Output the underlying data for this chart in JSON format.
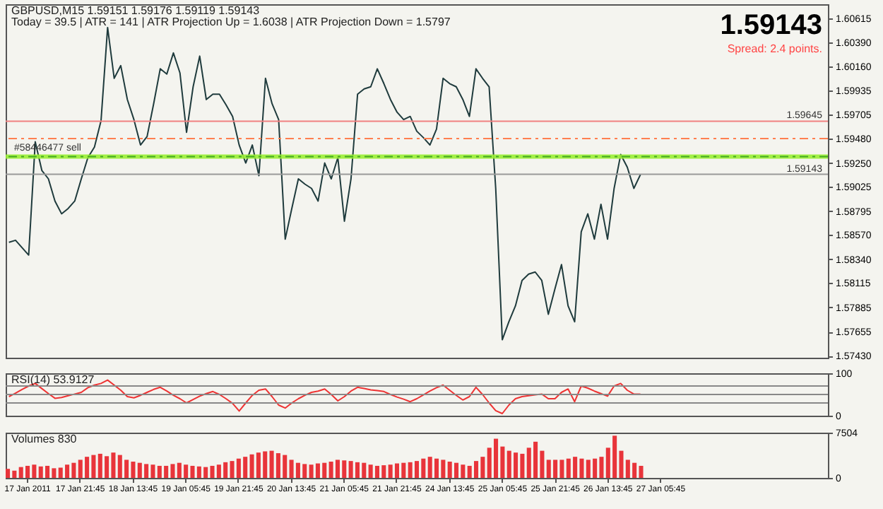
{
  "chart_data": [
    {
      "type": "line",
      "title": "GBPUSD,M15  1.59151 1.59176 1.59119 1.59143",
      "subtitle": "Today = 39.5   |   ATR = 141   |   ATR Projection Up = 1.6038   |   ATR Projection Down = 1.5797",
      "categories": [
        null,
        null,
        null,
        null,
        null,
        null,
        null,
        null,
        null,
        null,
        null,
        null,
        null,
        null,
        null,
        null,
        null,
        null,
        null,
        null,
        null,
        null,
        null,
        null,
        null,
        null,
        null,
        null,
        null,
        null,
        null,
        null,
        null,
        null,
        null,
        null,
        null,
        null,
        null,
        null,
        null,
        null,
        null,
        null,
        null,
        null,
        null,
        null,
        null,
        null,
        null,
        null,
        null,
        null,
        null,
        null,
        null,
        null,
        null,
        null,
        null,
        null,
        null,
        null,
        null,
        null,
        null,
        null,
        null,
        null,
        null,
        null,
        null,
        null,
        null,
        null,
        null,
        null,
        null,
        null,
        null,
        null,
        null,
        null,
        null,
        null,
        null,
        null,
        null,
        null,
        null,
        null,
        null,
        null,
        null,
        null,
        null,
        null,
        null,
        null,
        null,
        null,
        null,
        null,
        null,
        null,
        null,
        null,
        null,
        null,
        null,
        null,
        null,
        null,
        null,
        null,
        null,
        null,
        null,
        null,
        null,
        null,
        null,
        null,
        null
      ],
      "series": [
        {
          "color": "#1f3b3d",
          "values": [
            1.585,
            1.5852,
            1.5845,
            1.5838,
            1.5945,
            1.5918,
            1.591,
            1.5889,
            1.5877,
            1.5882,
            1.5889,
            1.591,
            1.593,
            1.594,
            1.5965,
            1.6053,
            1.6005,
            1.6017,
            1.5985,
            1.5966,
            1.5942,
            1.595,
            1.5981,
            1.6014,
            1.6009,
            1.6029,
            1.601,
            1.5954,
            1.5997,
            1.6026,
            1.5985,
            1.599,
            1.599,
            1.598,
            1.5969,
            1.5942,
            1.5925,
            1.5942,
            1.5913,
            1.6005,
            1.5981,
            1.5966,
            1.5853,
            1.5882,
            1.591,
            1.5905,
            1.5901,
            1.5889,
            1.5925,
            1.591,
            1.593,
            1.587,
            1.591,
            1.599,
            1.5995,
            1.5997,
            1.6014,
            1.6,
            1.5985,
            1.5973,
            1.5966,
            1.5969,
            1.5955,
            1.5949,
            1.5942,
            1.5957,
            1.6005,
            1.6,
            1.5997,
            1.5985,
            1.5969,
            1.6014,
            1.6005,
            1.5997,
            1.5901,
            1.5758,
            1.5775,
            1.579,
            1.5814,
            1.582,
            1.5822,
            1.5814,
            1.5782,
            1.5806,
            1.5829,
            1.579,
            1.5775,
            1.586,
            1.5877,
            1.5853,
            1.5886,
            1.5853,
            1.5901,
            1.5933,
            1.5921,
            1.5901,
            1.5914,
            null,
            null,
            null,
            null,
            null,
            null,
            null,
            null,
            null,
            null,
            null,
            null,
            null,
            null,
            null,
            null,
            null,
            null,
            null,
            null,
            null,
            null,
            null,
            null,
            null,
            null,
            null,
            null
          ]
        }
      ],
      "ylim": [
        1.5741,
        1.6075
      ],
      "yticks": [
        {
          "value": 1.60615,
          "label": "1.60615"
        },
        {
          "value": 1.6039,
          "label": "1.60390"
        },
        {
          "value": 1.6016,
          "label": "1.60160"
        },
        {
          "value": 1.59935,
          "label": "1.59935"
        },
        {
          "value": 1.59705,
          "label": "1.59705"
        },
        {
          "value": 1.5948,
          "label": "1.59480"
        },
        {
          "value": 1.5925,
          "label": "1.59250"
        },
        {
          "value": 1.59025,
          "label": "1.59025"
        },
        {
          "value": 1.58795,
          "label": "1.58795"
        },
        {
          "value": 1.5857,
          "label": "1.58570"
        },
        {
          "value": 1.5834,
          "label": "1.58340"
        },
        {
          "value": 1.58115,
          "label": "1.58115"
        },
        {
          "value": 1.57885,
          "label": "1.57885"
        },
        {
          "value": 1.57655,
          "label": "1.57655"
        },
        {
          "value": 1.5743,
          "label": "1.57430"
        }
      ],
      "tick_labels": "y",
      "ref_lines": [
        {
          "axis": "y",
          "value": 1.59645,
          "label": "1.59645",
          "color": "#f08080"
        },
        {
          "axis": "y",
          "value": 1.5948,
          "color": "#ff7f50",
          "line_style": "dashed"
        },
        {
          "axis": "y",
          "value": 1.5931,
          "color": "#44aa22",
          "line_style": "dashed"
        },
        {
          "axis": "y",
          "value": 1.59143,
          "label": "1.59143",
          "color": "#999999"
        }
      ],
      "bands": [
        {
          "axis": "y",
          "from": 1.5929,
          "to": 1.5933,
          "label": "#58446477 sell",
          "color": "#99ee33"
        }
      ],
      "annotations": [
        "1.59143",
        "Spread: 2.4 points."
      ]
    },
    {
      "type": "line",
      "title": "RSI(14) 53.9127",
      "categories": [
        null,
        null,
        null,
        null,
        null,
        null,
        null,
        null,
        null,
        null,
        null,
        null,
        null,
        null,
        null,
        null,
        null,
        null,
        null,
        null,
        null,
        null,
        null,
        null,
        null,
        null,
        null,
        null,
        null,
        null,
        null,
        null,
        null,
        null,
        null,
        null,
        null,
        null,
        null,
        null,
        null,
        null,
        null,
        null,
        null,
        null,
        null,
        null,
        null,
        null,
        null,
        null,
        null,
        null,
        null,
        null,
        null,
        null,
        null,
        null,
        null,
        null,
        null,
        null,
        null,
        null,
        null,
        null,
        null,
        null,
        null,
        null,
        null,
        null,
        null,
        null,
        null,
        null,
        null,
        null,
        null,
        null,
        null,
        null,
        null,
        null,
        null,
        null,
        null,
        null,
        null,
        null,
        null,
        null,
        null,
        null,
        null,
        null,
        null,
        null,
        null,
        null,
        null,
        null,
        null,
        null,
        null,
        null,
        null,
        null,
        null,
        null,
        null,
        null,
        null,
        null,
        null,
        null,
        null,
        null,
        null,
        null,
        null,
        null,
        null
      ],
      "series": [
        {
          "color": "#ee3333",
          "values": [
            45,
            53,
            62,
            70,
            76,
            64,
            52,
            41,
            43,
            47,
            51,
            55,
            66,
            72,
            76,
            84,
            72,
            60,
            45,
            42,
            48,
            55,
            62,
            67,
            58,
            48,
            40,
            30,
            38,
            46,
            52,
            57,
            50,
            40,
            29,
            11,
            30,
            48,
            60,
            63,
            45,
            25,
            18,
            30,
            40,
            48,
            55,
            58,
            63,
            50,
            35,
            45,
            58,
            67,
            64,
            61,
            59,
            57,
            50,
            44,
            39,
            33,
            40,
            49,
            58,
            66,
            72,
            60,
            48,
            37,
            45,
            67,
            50,
            30,
            12,
            5,
            25,
            40,
            45,
            47,
            49,
            51,
            40,
            40,
            55,
            63,
            33,
            70,
            65,
            58,
            52,
            46,
            70,
            76,
            60,
            51,
            51,
            null,
            null,
            null,
            null,
            null,
            null,
            null,
            null,
            null,
            null,
            null,
            null,
            null,
            null,
            null,
            null,
            null,
            null,
            null,
            null,
            null,
            null,
            null,
            null,
            null,
            null,
            null,
            null
          ]
        }
      ],
      "ylim": [
        0,
        100
      ],
      "yticks": [
        0,
        100
      ],
      "tick_labels": "y",
      "ref_lines": [
        {
          "axis": "y",
          "value": 70,
          "color": "#888888"
        },
        {
          "axis": "y",
          "value": 50,
          "color": "#888888"
        },
        {
          "axis": "y",
          "value": 30,
          "color": "#888888"
        }
      ]
    },
    {
      "type": "bar",
      "title": "Volumes 830",
      "categories": [
        null,
        null,
        null,
        "17 Jan 2011",
        null,
        null,
        null,
        null,
        null,
        null,
        null,
        "17 Jan 21:45",
        null,
        null,
        null,
        null,
        null,
        null,
        null,
        "18 Jan 13:45",
        null,
        null,
        null,
        null,
        null,
        null,
        null,
        "19 Jan 05:45",
        null,
        null,
        null,
        null,
        null,
        null,
        null,
        "19 Jan 21:45",
        null,
        null,
        null,
        null,
        null,
        null,
        null,
        "20 Jan 13:45",
        null,
        null,
        null,
        null,
        null,
        null,
        null,
        "21 Jan 05:45",
        null,
        null,
        null,
        null,
        null,
        null,
        null,
        "21 Jan 21:45",
        null,
        null,
        null,
        null,
        null,
        null,
        null,
        "24 Jan 13:45",
        null,
        null,
        null,
        null,
        null,
        null,
        null,
        "25 Jan 05:45",
        null,
        null,
        null,
        null,
        null,
        null,
        null,
        "25 Jan 21:45",
        null,
        null,
        null,
        null,
        null,
        null,
        null,
        "26 Jan 13:45",
        null,
        null,
        null,
        null,
        null,
        null,
        null,
        "27 Jan 05:45",
        null,
        null,
        null,
        null,
        null,
        null,
        null,
        null,
        null,
        null,
        null,
        null,
        null,
        null,
        null,
        null,
        null,
        null,
        null,
        null,
        null,
        null,
        null,
        null,
        null
      ],
      "series": [
        {
          "color": "#e8343a",
          "values": [
            1500,
            1200,
            1800,
            2000,
            2200,
            1900,
            2000,
            1600,
            1700,
            2200,
            2500,
            3000,
            3500,
            3800,
            4000,
            3600,
            4200,
            3800,
            3000,
            2700,
            2500,
            2300,
            2200,
            2000,
            2000,
            2300,
            2500,
            2200,
            2000,
            1900,
            1800,
            2000,
            2200,
            2600,
            2800,
            3200,
            3500,
            3900,
            4200,
            4400,
            4500,
            4100,
            3800,
            3000,
            2500,
            2300,
            2200,
            2400,
            2500,
            2700,
            3000,
            2900,
            2800,
            2600,
            2500,
            2200,
            2000,
            2100,
            2200,
            2400,
            2500,
            2600,
            2800,
            3200,
            3500,
            3200,
            3000,
            2700,
            2500,
            2200,
            2000,
            2800,
            3500,
            5000,
            6500,
            5200,
            4500,
            4200,
            4000,
            5000,
            6000,
            4500,
            3000,
            3000,
            3000,
            3200,
            3500,
            3200,
            3000,
            3200,
            3500,
            5000,
            7000,
            4500,
            3000,
            2500,
            2000,
            null,
            null,
            null,
            null,
            null,
            null,
            null,
            null,
            null,
            null,
            null,
            null,
            null,
            null,
            null,
            null,
            null,
            null,
            null,
            null,
            null,
            null,
            null,
            null,
            null,
            null,
            null,
            null
          ]
        }
      ],
      "ylim": [
        0,
        7504
      ],
      "yticks": [
        0,
        7504
      ]
    }
  ]
}
